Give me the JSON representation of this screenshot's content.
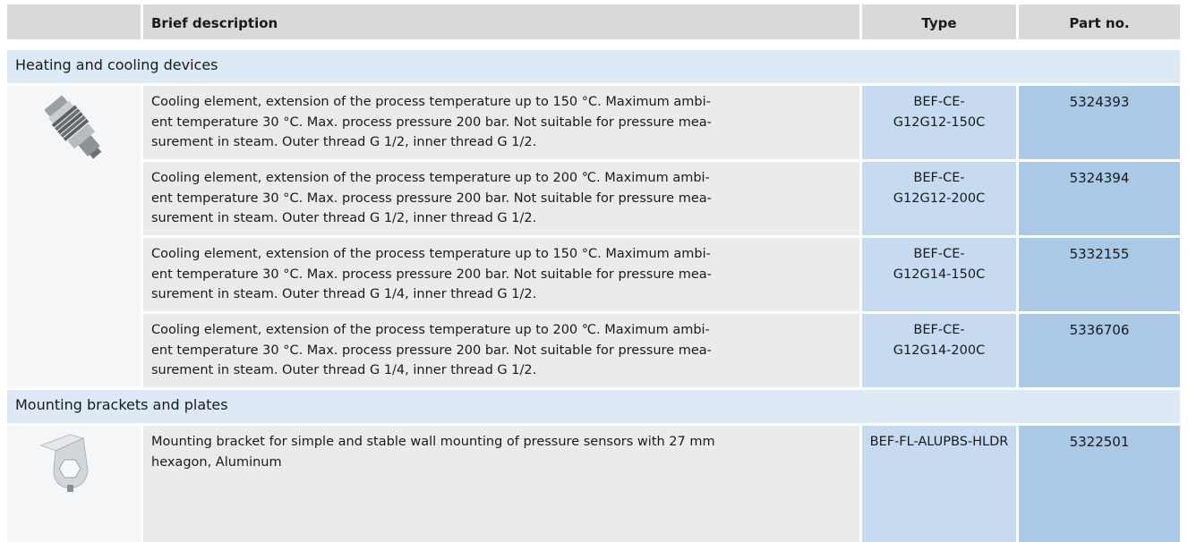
{
  "header": {
    "columns": [
      "Brief description",
      "Type",
      "Part no."
    ]
  },
  "sections": [
    {
      "title": "Heating and cooling devices",
      "rows": [
        {
          "description": [
            "Cooling element, extension of the process temperature up to 150 °C. Maximum ambi-",
            "ent temperature 30 °C. Max. process pressure 200 bar. Not suitable for pressure mea-",
            "surement in steam. Outer thread G 1/2, inner thread G 1/2."
          ],
          "type": [
            "BEF-CE-",
            "G12G12-150C"
          ],
          "part_no": "5324393"
        },
        {
          "description": [
            "Cooling element, extension of the process temperature up to 200 ℃. Maximum ambi-",
            "ent temperature 30 °C. Max. process pressure 200 bar. Not suitable for pressure mea-",
            "surement in steam. Outer thread G 1/2, inner thread G 1/2."
          ],
          "type": [
            "BEF-CE-",
            "G12G12-200C"
          ],
          "part_no": "5324394"
        },
        {
          "description": [
            "Cooling element, extension of the process temperature up to 150 °C. Maximum ambi-",
            "ent temperature 30 °C. Max. process pressure 200 bar. Not suitable for pressure mea-",
            "surement in steam. Outer thread G 1/4, inner thread G 1/2."
          ],
          "type": [
            "BEF-CE-",
            "G12G14-150C"
          ],
          "part_no": "5332155"
        },
        {
          "description": [
            "Cooling element, extension of the process temperature up to 200 ℃. Maximum ambi-",
            "ent temperature 30 °C. Max. process pressure 200 bar. Not suitable for pressure mea-",
            "surement in steam. Outer thread G 1/4, inner thread G 1/2."
          ],
          "type": [
            "BEF-CE-",
            "G12G14-200C"
          ],
          "part_no": "5336706"
        }
      ]
    },
    {
      "title": "Mounting brackets and plates",
      "rows": [
        {
          "description": [
            "Mounting bracket for simple and stable wall mounting of pressure sensors with 27 mm",
            "hexagon, Aluminum"
          ],
          "type": [
            "BEF-FL-ALUPBS-HLDR"
          ],
          "part_no": "5322501"
        }
      ]
    }
  ]
}
